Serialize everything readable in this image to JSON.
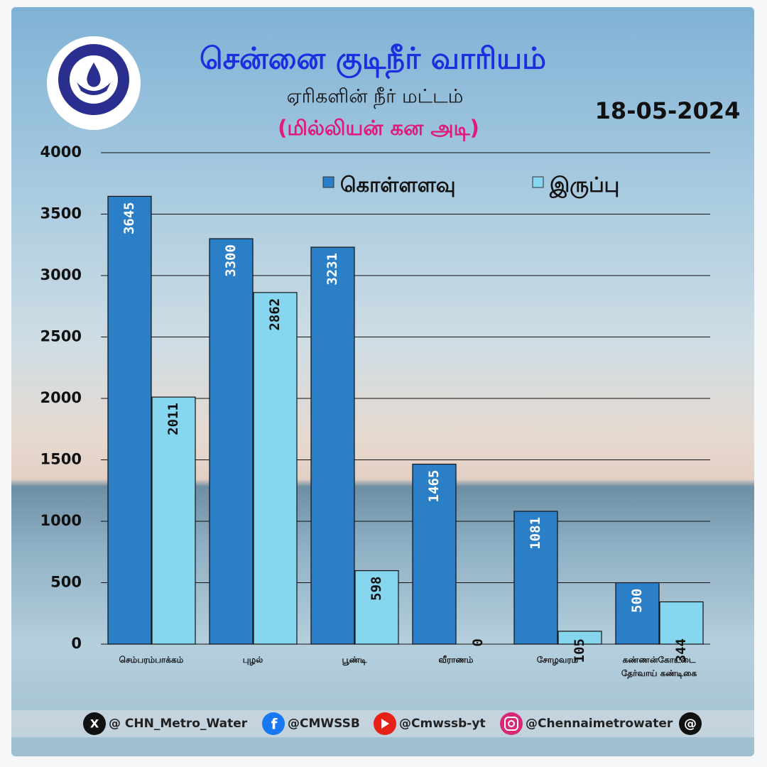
{
  "chart_data": {
    "type": "bar",
    "title": "சென்னை குடிநீர் வாரியம்",
    "subtitle": "ஏரிகளின் நீர் மட்டம்",
    "unit_label": "(மில்லியன் கன அடி)",
    "date": "18-05-2024",
    "categories": [
      "செம்பரம்பாக்கம்",
      "புழல்",
      "பூண்டி",
      "வீராணம்",
      "சோழவரம்",
      "கண்ணன்கோட்டை தேர்வாய் கண்டிகை"
    ],
    "series": [
      {
        "name": "கொள்ளளவு",
        "color": "#2b7fc6",
        "values": [
          3645,
          3300,
          3231,
          1465,
          1081,
          500
        ]
      },
      {
        "name": "இருப்பு",
        "color": "#86d6f0",
        "values": [
          2011,
          2862,
          598,
          0,
          105,
          344
        ]
      }
    ],
    "ylim": [
      0,
      4000
    ],
    "yticks": [
      0,
      500,
      1000,
      1500,
      2000,
      2500,
      3000,
      3500,
      4000
    ],
    "grid": true,
    "legend": "top"
  },
  "footer": {
    "handles": [
      "@ CHN_Metro_Water",
      "@CMWSSB",
      "@Cmwssb-yt",
      "@Chennaimetrowater"
    ]
  }
}
